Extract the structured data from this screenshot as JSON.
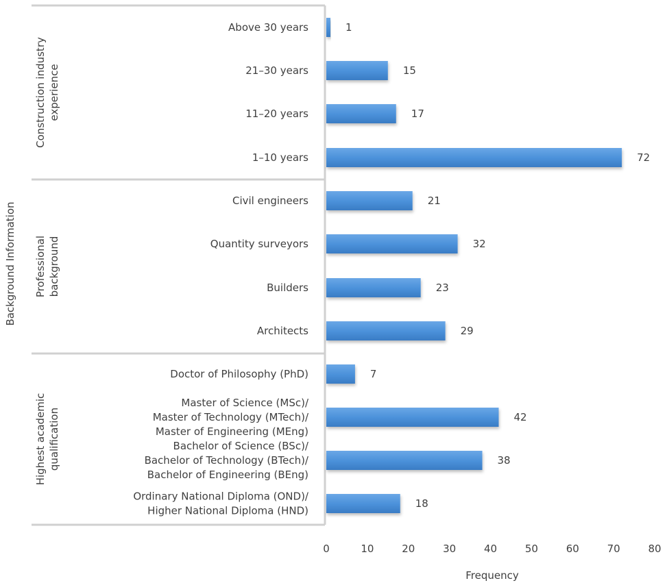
{
  "chart_data": {
    "type": "bar",
    "orientation": "horizontal",
    "xlabel": "Frequency",
    "ylabel": "Background Information",
    "xlim": [
      0,
      80
    ],
    "xticks": [
      0,
      10,
      20,
      30,
      40,
      50,
      60,
      70,
      80
    ],
    "grid": false,
    "legend": "none",
    "bar_color": "#4a90d9",
    "groups": [
      {
        "label": [
          "Construction industry",
          "experience"
        ],
        "items": [
          {
            "label": [
              "Above 30 years"
            ],
            "value": 1
          },
          {
            "label": [
              "21–30 years"
            ],
            "value": 15
          },
          {
            "label": [
              "11–20 years"
            ],
            "value": 17
          },
          {
            "label": [
              "1–10 years"
            ],
            "value": 72
          }
        ]
      },
      {
        "label": [
          "Professional",
          "background"
        ],
        "items": [
          {
            "label": [
              "Civil engineers"
            ],
            "value": 21
          },
          {
            "label": [
              "Quantity surveyors"
            ],
            "value": 32
          },
          {
            "label": [
              "Builders"
            ],
            "value": 23
          },
          {
            "label": [
              "Architects"
            ],
            "value": 29
          }
        ]
      },
      {
        "label": [
          "Highest academic",
          "qualification"
        ],
        "items": [
          {
            "label": [
              "Doctor of Philosophy (PhD)"
            ],
            "value": 7
          },
          {
            "label": [
              "Master of Science (MSc)/",
              "Master of Technology (MTech)/",
              "Master of Engineering (MEng)"
            ],
            "value": 42
          },
          {
            "label": [
              "Bachelor of Science (BSc)/",
              "Bachelor of Technology (BTech)/",
              "Bachelor of Engineering (BEng)"
            ],
            "value": 38
          },
          {
            "label": [
              "Ordinary National Diploma (OND)/",
              "Higher National Diploma (HND)"
            ],
            "value": 18
          }
        ]
      }
    ]
  }
}
